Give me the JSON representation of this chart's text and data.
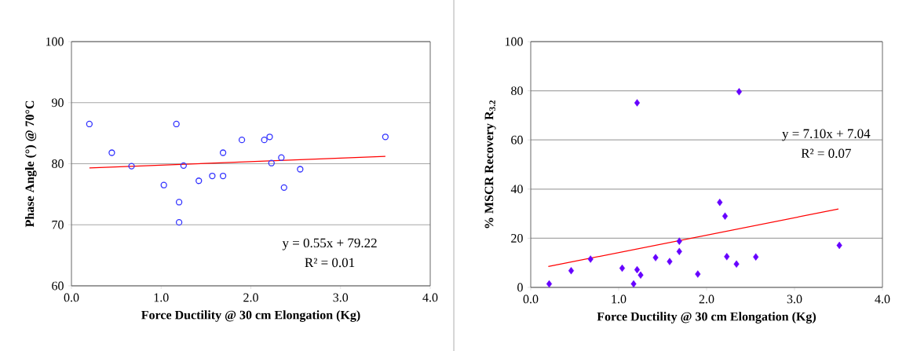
{
  "chart_data": [
    {
      "type": "scatter",
      "xlabel": "Force Ductility @ 30 cm Elongation (Kg)",
      "ylabel": "Phase Angle (°) @ 70°C",
      "xlim": [
        0,
        4
      ],
      "ylim": [
        60,
        100
      ],
      "xticks": [
        {
          "value": 0,
          "label": "0.0"
        },
        {
          "value": 1,
          "label": "1.0"
        },
        {
          "value": 2,
          "label": "2.0"
        },
        {
          "value": 3,
          "label": "3.0"
        },
        {
          "value": 4,
          "label": "4.0"
        }
      ],
      "yticks": [
        60,
        70,
        80,
        90,
        100
      ],
      "grid": "y",
      "annotations": [
        "y = 0.55x + 79.22",
        "R² = 0.01"
      ],
      "series": [
        {
          "marker": "circle",
          "color": "#3333ff",
          "x": [
            0.2,
            0.45,
            0.67,
            1.03,
            1.17,
            1.2,
            1.2,
            1.25,
            1.42,
            1.57,
            1.69,
            1.69,
            1.9,
            2.15,
            2.21,
            2.23,
            2.34,
            2.37,
            2.55,
            3.5
          ],
          "values": [
            86.5,
            81.8,
            79.6,
            76.5,
            86.5,
            73.7,
            70.4,
            79.7,
            77.2,
            78.0,
            81.8,
            78.0,
            83.9,
            83.9,
            84.4,
            80.1,
            81.0,
            76.1,
            79.1,
            84.4
          ]
        },
        {
          "type": "line",
          "marker": "none",
          "color": "#ff0000",
          "x": [
            0.2,
            3.5
          ],
          "values": [
            79.3,
            81.2
          ]
        }
      ]
    },
    {
      "type": "scatter",
      "xlabel": "Force Ductility @ 30 cm Elongation (Kg)",
      "ylabel": "% MSCR Recovery R$_{3.2}$",
      "xlim": [
        0,
        4
      ],
      "ylim": [
        0,
        100
      ],
      "xticks": [
        {
          "value": 0,
          "label": "0.0"
        },
        {
          "value": 1,
          "label": "1.0"
        },
        {
          "value": 2,
          "label": "2.0"
        },
        {
          "value": 3,
          "label": "3.0"
        },
        {
          "value": 4,
          "label": "4.0"
        }
      ],
      "yticks": [
        0,
        20,
        40,
        60,
        80,
        100
      ],
      "grid": "y",
      "annotations": [
        "y = 7.10x + 7.04",
        "R² = 0.07"
      ],
      "series": [
        {
          "marker": "diamond",
          "color": "#6600ff",
          "x": [
            0.21,
            0.46,
            0.68,
            1.04,
            1.17,
            1.21,
            1.21,
            1.25,
            1.42,
            1.58,
            1.69,
            1.69,
            1.9,
            2.15,
            2.21,
            2.23,
            2.34,
            2.37,
            2.56,
            3.51
          ],
          "values": [
            1.4,
            6.8,
            11.5,
            7.8,
            1.4,
            75.1,
            7.2,
            5.0,
            12.1,
            10.5,
            18.8,
            14.6,
            5.4,
            34.6,
            29.0,
            12.5,
            9.5,
            79.6,
            12.4,
            17.1
          ]
        },
        {
          "type": "line",
          "marker": "none",
          "color": "#ff0000",
          "x": [
            0.2,
            3.5
          ],
          "values": [
            8.5,
            31.9
          ]
        }
      ]
    }
  ]
}
